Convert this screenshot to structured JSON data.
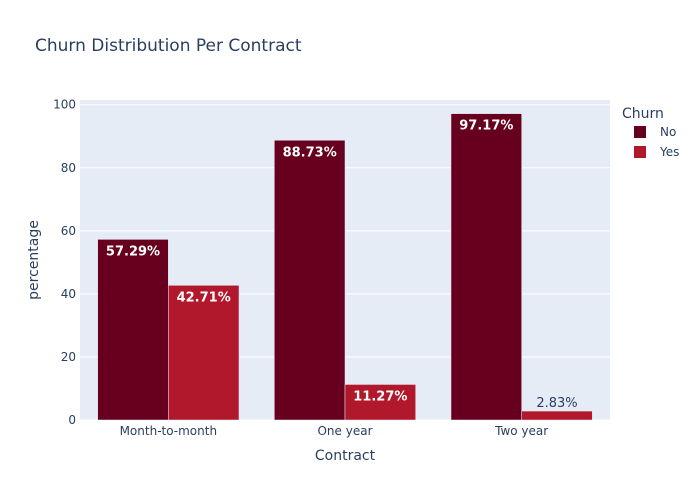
{
  "chart_data": {
    "type": "bar",
    "title": "Churn Distribution Per Contract",
    "xlabel": "Contract",
    "ylabel": "percentage",
    "categories": [
      "Month-to-month",
      "One year",
      "Two year"
    ],
    "series": [
      {
        "name": "No",
        "values": [
          57.29,
          88.73,
          97.17
        ],
        "labels": [
          "57.29%",
          "88.73%",
          "97.17%"
        ],
        "color": "#67001f"
      },
      {
        "name": "Yes",
        "values": [
          42.71,
          11.27,
          2.83
        ],
        "labels": [
          "42.71%",
          "11.27%",
          "2.83%"
        ],
        "color": "#b2182b"
      }
    ],
    "ylim": [
      0,
      101.5
    ],
    "yticks": [
      0,
      20,
      40,
      60,
      80,
      100
    ],
    "ytick_labels": [
      "0",
      "20",
      "40",
      "60",
      "80",
      "100"
    ],
    "legend_title": "Churn",
    "legend_position": "top-right",
    "grid": true,
    "plot_background": "#e5ecf6",
    "text_color": "#2a3f5f"
  }
}
